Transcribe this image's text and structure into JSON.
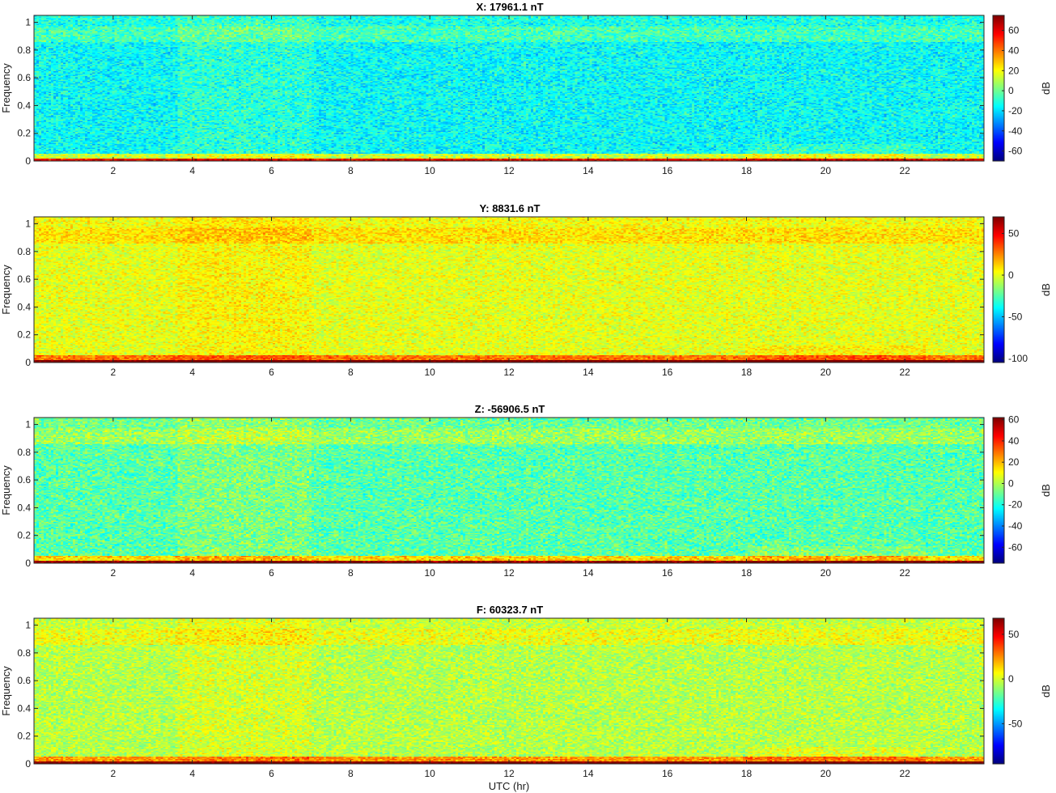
{
  "chart_data": [
    {
      "type": "heatmap",
      "title": "X: 17961.1 nT",
      "ylabel": "Frequency",
      "xlabel": "",
      "xlim": [
        0,
        24
      ],
      "ylim": [
        0,
        1.05
      ],
      "xticks": [
        2,
        4,
        6,
        8,
        10,
        12,
        14,
        16,
        18,
        20,
        22
      ],
      "yticks": [
        0,
        0.2,
        0.4,
        0.6,
        0.8,
        1
      ],
      "colorbar": {
        "label": "dB",
        "range": [
          -70,
          75
        ],
        "ticks": [
          60,
          40,
          20,
          0,
          -20,
          -40,
          -60
        ]
      },
      "background_level_db": -15
    },
    {
      "type": "heatmap",
      "title": "Y: 8831.6 nT",
      "ylabel": "Frequency",
      "xlabel": "",
      "xlim": [
        0,
        24
      ],
      "ylim": [
        0,
        1.05
      ],
      "xticks": [
        2,
        4,
        6,
        8,
        10,
        12,
        14,
        16,
        18,
        20,
        22
      ],
      "yticks": [
        0,
        0.2,
        0.4,
        0.6,
        0.8,
        1
      ],
      "colorbar": {
        "label": "dB",
        "range": [
          -105,
          70
        ],
        "ticks": [
          50,
          0,
          -50,
          -100
        ]
      },
      "background_level_db": 0
    },
    {
      "type": "heatmap",
      "title": "Z: -56906.5 nT",
      "ylabel": "Frequency",
      "xlabel": "",
      "xlim": [
        0,
        24
      ],
      "ylim": [
        0,
        1.05
      ],
      "xticks": [
        2,
        4,
        6,
        8,
        10,
        12,
        14,
        16,
        18,
        20,
        22
      ],
      "yticks": [
        0,
        0.2,
        0.4,
        0.6,
        0.8,
        1
      ],
      "colorbar": {
        "label": "dB",
        "range": [
          -75,
          62
        ],
        "ticks": [
          60,
          40,
          20,
          0,
          -20,
          -40,
          -60
        ]
      },
      "background_level_db": -12
    },
    {
      "type": "heatmap",
      "title": "F: 60323.7 nT",
      "ylabel": "Frequency",
      "xlabel": "UTC (hr)",
      "xlim": [
        0,
        24
      ],
      "ylim": [
        0,
        1.05
      ],
      "xticks": [
        2,
        4,
        6,
        8,
        10,
        12,
        14,
        16,
        18,
        20,
        22
      ],
      "yticks": [
        0,
        0.2,
        0.4,
        0.6,
        0.8,
        1
      ],
      "colorbar": {
        "label": "dB",
        "range": [
          -95,
          68
        ],
        "ticks": [
          50,
          0,
          -50
        ]
      },
      "background_level_db": -5
    }
  ]
}
